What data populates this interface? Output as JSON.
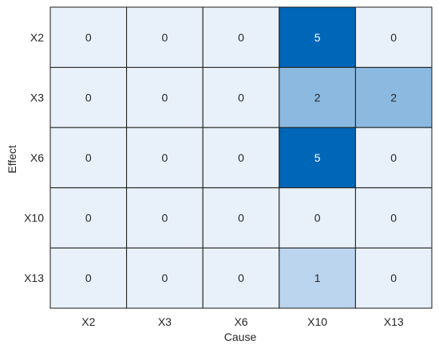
{
  "chart_data": {
    "type": "heatmap",
    "xlabel": "Cause",
    "ylabel": "Effect",
    "x_categories": [
      "X2",
      "X3",
      "X6",
      "X10",
      "X13"
    ],
    "y_categories": [
      "X2",
      "X3",
      "X6",
      "X10",
      "X13"
    ],
    "values": [
      [
        0,
        0,
        0,
        5,
        0
      ],
      [
        0,
        0,
        0,
        2,
        2
      ],
      [
        0,
        0,
        0,
        5,
        0
      ],
      [
        0,
        0,
        0,
        0,
        0
      ],
      [
        0,
        0,
        0,
        1,
        0
      ]
    ],
    "value_range": [
      0,
      5
    ],
    "colormap": {
      "low": "#e8f1fa",
      "high": "#0066b8"
    },
    "cell_label_colors": {
      "on_light": "#262626",
      "on_dark": "#ffffff"
    },
    "grid_color": "#1a1a1a"
  }
}
